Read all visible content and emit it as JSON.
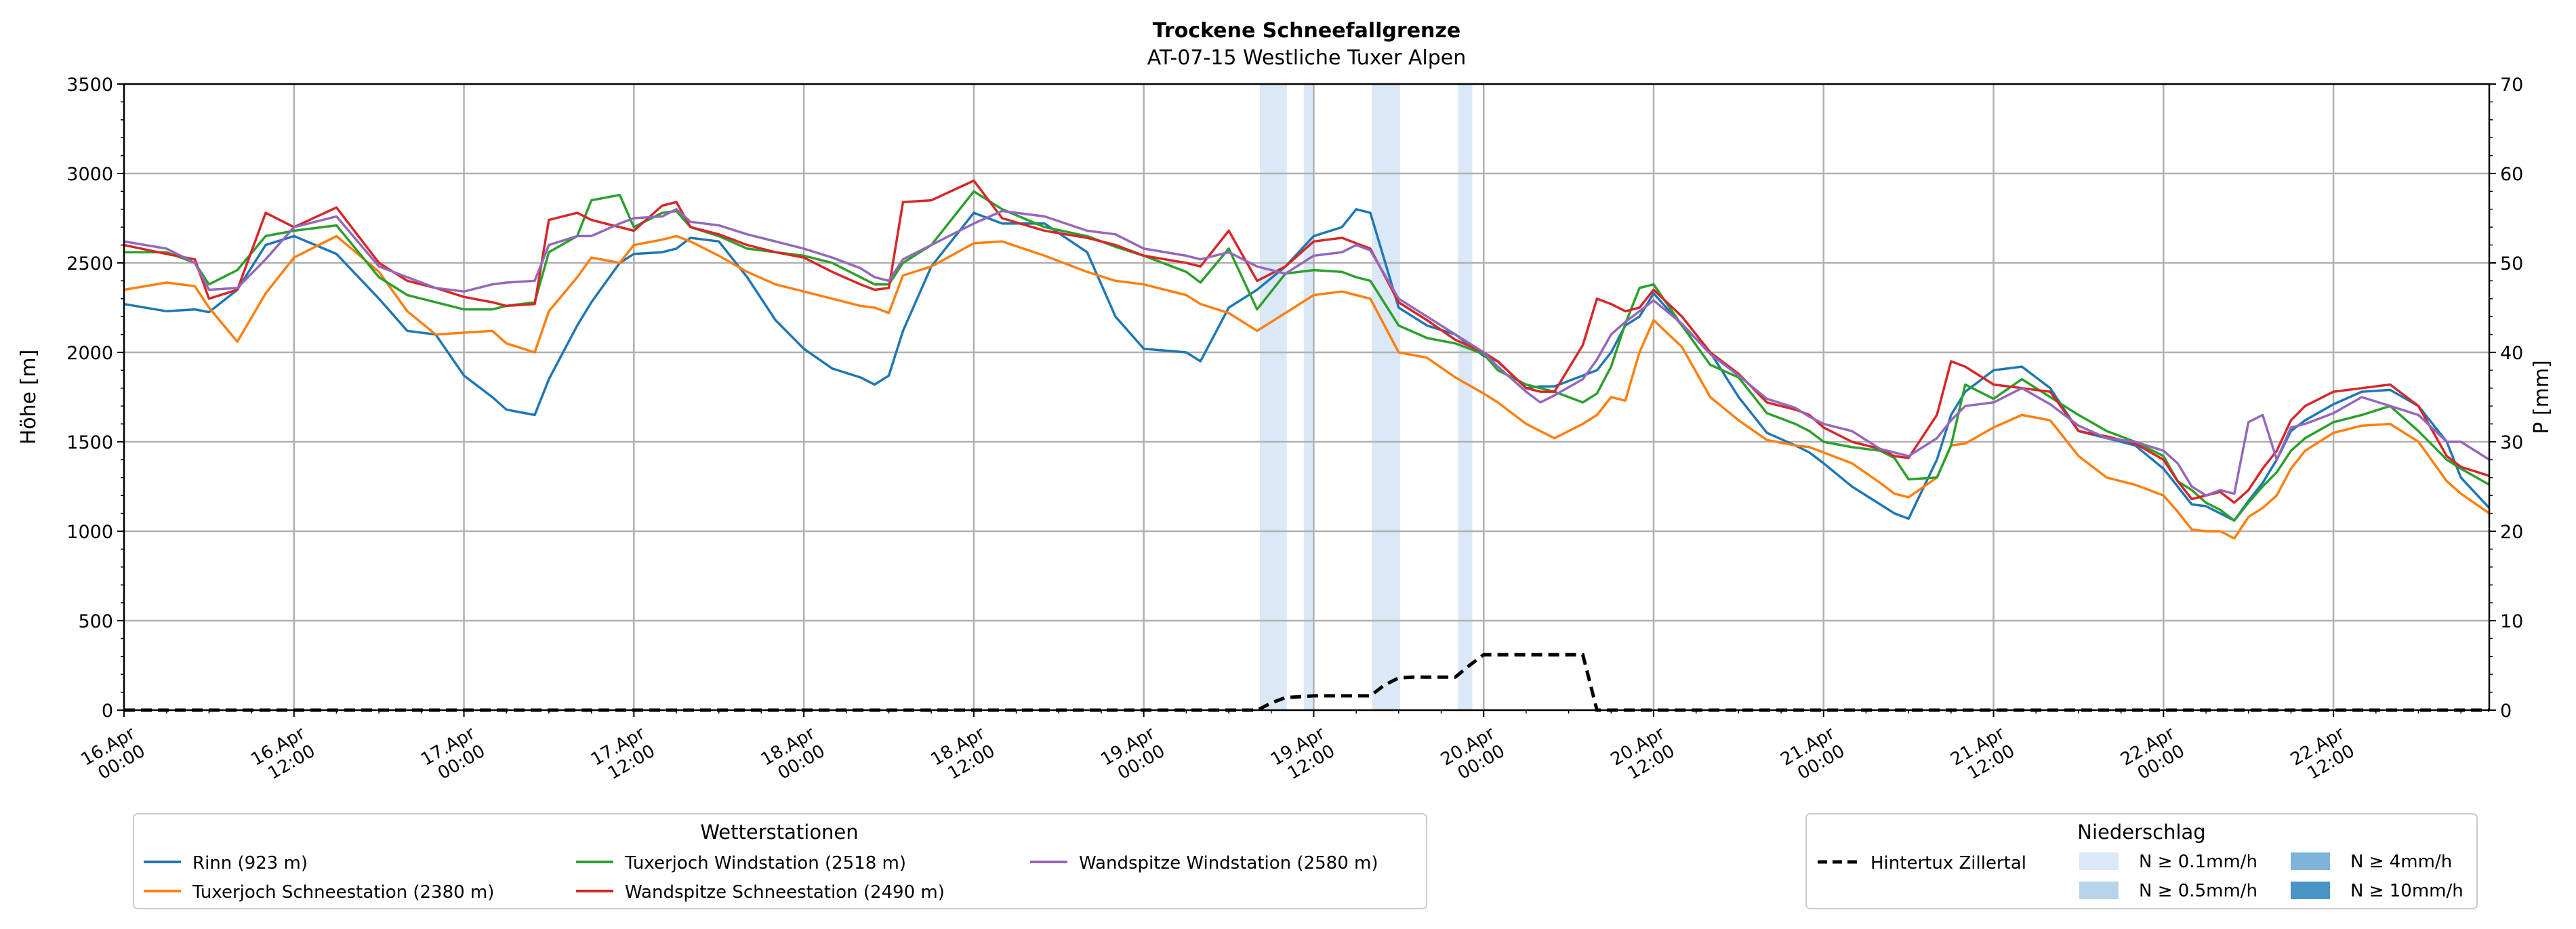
{
  "chart_data": {
    "type": "line",
    "title": "Trockene Schneefallgrenze",
    "subtitle": "AT-07-15 Westliche Tuxer Alpen",
    "ylabel": "Höhe [m]",
    "y2label": "P [mm]",
    "ylim": [
      0,
      3500
    ],
    "y2lim": [
      0,
      70
    ],
    "xlim_hours": [
      0,
      167
    ],
    "yticks": [
      "0",
      "500",
      "1000",
      "1500",
      "2000",
      "2500",
      "3000",
      "3500"
    ],
    "y2ticks": [
      "0",
      "10",
      "20",
      "30",
      "40",
      "50",
      "60",
      "70"
    ],
    "x_ticks": [
      {
        "h": 0,
        "l1": "16.Apr",
        "l2": "00:00"
      },
      {
        "h": 12,
        "l1": "16.Apr",
        "l2": "12:00"
      },
      {
        "h": 24,
        "l1": "17.Apr",
        "l2": "00:00"
      },
      {
        "h": 36,
        "l1": "17.Apr",
        "l2": "12:00"
      },
      {
        "h": 48,
        "l1": "18.Apr",
        "l2": "00:00"
      },
      {
        "h": 60,
        "l1": "18.Apr",
        "l2": "12:00"
      },
      {
        "h": 72,
        "l1": "19.Apr",
        "l2": "00:00"
      },
      {
        "h": 84,
        "l1": "19.Apr",
        "l2": "12:00"
      },
      {
        "h": 96,
        "l1": "20.Apr",
        "l2": "00:00"
      },
      {
        "h": 108,
        "l1": "20.Apr",
        "l2": "12:00"
      },
      {
        "h": 120,
        "l1": "21.Apr",
        "l2": "00:00"
      },
      {
        "h": 132,
        "l1": "21.Apr",
        "l2": "12:00"
      },
      {
        "h": 144,
        "l1": "22.Apr",
        "l2": "00:00"
      },
      {
        "h": 156,
        "l1": "22.Apr",
        "l2": "12:00"
      }
    ],
    "anchor_hours": [
      0,
      3,
      5,
      6,
      8,
      10,
      12,
      15,
      18,
      20,
      22,
      24,
      26,
      27,
      29,
      30,
      32,
      33,
      35,
      36,
      38,
      39,
      40,
      42,
      44,
      46,
      48,
      50,
      52,
      53,
      54,
      55,
      57,
      60,
      62,
      65,
      68,
      70,
      72,
      75,
      76,
      78,
      80,
      82,
      84,
      86,
      87,
      88,
      90,
      92,
      94,
      96,
      97,
      99,
      100,
      101,
      103,
      104,
      105,
      106,
      107,
      108,
      110,
      112,
      114,
      116,
      118,
      119,
      120,
      122,
      124,
      125,
      126,
      128,
      129,
      130,
      132,
      134,
      136,
      138,
      140,
      142,
      144,
      145,
      146,
      147,
      148,
      149,
      150,
      151,
      152,
      153,
      154,
      156,
      158,
      160,
      162,
      164,
      165,
      167
    ],
    "series": [
      {
        "name": "Rinn (923 m)",
        "color": "#1f77b4",
        "values": [
          2270,
          2230,
          2240,
          2225,
          2350,
          2600,
          2650,
          2550,
          2300,
          2120,
          2100,
          1870,
          1750,
          1680,
          1650,
          1850,
          2150,
          2280,
          2500,
          2550,
          2560,
          2580,
          2640,
          2620,
          2420,
          2180,
          2020,
          1910,
          1860,
          1820,
          1870,
          2120,
          2480,
          2780,
          2720,
          2720,
          2560,
          2200,
          2020,
          2000,
          1950,
          2250,
          2350,
          2480,
          2650,
          2700,
          2800,
          2780,
          2250,
          2150,
          2100,
          1980,
          1950,
          1800,
          1810,
          1810,
          1870,
          1900,
          2000,
          2150,
          2200,
          2330,
          2150,
          2000,
          1750,
          1550,
          1480,
          1440,
          1380,
          1250,
          1150,
          1100,
          1070,
          1400,
          1650,
          1780,
          1900,
          1920,
          1800,
          1560,
          1520,
          1480,
          1350,
          1250,
          1150,
          1140,
          1100,
          1060,
          1170,
          1270,
          1400,
          1560,
          1620,
          1710,
          1780,
          1790,
          1700,
          1500,
          1300,
          1130
        ]
      },
      {
        "name": "Tuxerjoch Schneestation (2380 m)",
        "color": "#ff7f0e",
        "values": [
          2350,
          2390,
          2370,
          2250,
          2060,
          2330,
          2530,
          2650,
          2450,
          2230,
          2100,
          2110,
          2120,
          2050,
          2000,
          2230,
          2420,
          2530,
          2500,
          2600,
          2630,
          2650,
          2620,
          2540,
          2450,
          2380,
          2340,
          2300,
          2260,
          2250,
          2220,
          2430,
          2480,
          2610,
          2620,
          2540,
          2450,
          2400,
          2380,
          2320,
          2270,
          2220,
          2120,
          2220,
          2320,
          2340,
          2320,
          2300,
          2000,
          1970,
          1860,
          1770,
          1720,
          1600,
          1560,
          1520,
          1600,
          1650,
          1750,
          1730,
          2000,
          2180,
          2030,
          1750,
          1620,
          1510,
          1480,
          1470,
          1440,
          1380,
          1270,
          1210,
          1190,
          1300,
          1480,
          1490,
          1580,
          1650,
          1620,
          1420,
          1300,
          1260,
          1200,
          1110,
          1010,
          1000,
          1000,
          960,
          1080,
          1130,
          1200,
          1350,
          1450,
          1550,
          1590,
          1600,
          1500,
          1280,
          1210,
          1100
        ]
      },
      {
        "name": "Tuxerjoch Windstation (2518 m)",
        "color": "#2ca02c",
        "values": [
          2560,
          2560,
          2500,
          2380,
          2460,
          2650,
          2680,
          2710,
          2420,
          2320,
          2280,
          2240,
          2240,
          2260,
          2280,
          2560,
          2650,
          2850,
          2880,
          2700,
          2780,
          2790,
          2700,
          2650,
          2580,
          2560,
          2540,
          2500,
          2420,
          2380,
          2380,
          2500,
          2600,
          2900,
          2800,
          2700,
          2650,
          2590,
          2540,
          2450,
          2390,
          2580,
          2240,
          2440,
          2460,
          2450,
          2420,
          2400,
          2150,
          2080,
          2050,
          1990,
          1900,
          1820,
          1800,
          1780,
          1720,
          1770,
          1920,
          2160,
          2360,
          2380,
          2150,
          1930,
          1860,
          1660,
          1600,
          1560,
          1500,
          1470,
          1450,
          1410,
          1290,
          1300,
          1480,
          1820,
          1740,
          1850,
          1750,
          1650,
          1560,
          1500,
          1420,
          1280,
          1230,
          1160,
          1120,
          1060,
          1160,
          1250,
          1330,
          1450,
          1520,
          1610,
          1650,
          1700,
          1560,
          1400,
          1350,
          1260
        ]
      },
      {
        "name": "Wandspitze Schneestation (2490 m)",
        "color": "#d62728",
        "values": [
          2600,
          2550,
          2520,
          2300,
          2350,
          2780,
          2700,
          2810,
          2500,
          2400,
          2360,
          2310,
          2280,
          2260,
          2270,
          2740,
          2780,
          2740,
          2700,
          2680,
          2820,
          2840,
          2700,
          2660,
          2600,
          2560,
          2530,
          2450,
          2380,
          2350,
          2360,
          2840,
          2850,
          2960,
          2750,
          2680,
          2640,
          2600,
          2540,
          2500,
          2480,
          2680,
          2400,
          2480,
          2620,
          2640,
          2610,
          2580,
          2280,
          2180,
          2070,
          2000,
          1950,
          1800,
          1780,
          1780,
          2040,
          2300,
          2270,
          2230,
          2250,
          2350,
          2200,
          2000,
          1880,
          1720,
          1680,
          1650,
          1580,
          1500,
          1460,
          1420,
          1410,
          1650,
          1950,
          1920,
          1820,
          1800,
          1780,
          1560,
          1530,
          1490,
          1400,
          1280,
          1180,
          1200,
          1220,
          1160,
          1230,
          1350,
          1450,
          1620,
          1700,
          1780,
          1800,
          1820,
          1700,
          1420,
          1360,
          1310
        ]
      },
      {
        "name": "Wandspitze Windstation (2580 m)",
        "color": "#9467bd",
        "values": [
          2620,
          2580,
          2500,
          2350,
          2360,
          2520,
          2700,
          2760,
          2480,
          2420,
          2360,
          2340,
          2380,
          2390,
          2400,
          2600,
          2650,
          2650,
          2720,
          2750,
          2760,
          2800,
          2730,
          2710,
          2660,
          2620,
          2580,
          2530,
          2470,
          2420,
          2400,
          2520,
          2600,
          2720,
          2790,
          2760,
          2680,
          2660,
          2580,
          2540,
          2520,
          2560,
          2480,
          2440,
          2540,
          2560,
          2600,
          2570,
          2300,
          2200,
          2100,
          2000,
          1920,
          1780,
          1720,
          1760,
          1850,
          1960,
          2100,
          2170,
          2230,
          2290,
          2160,
          1990,
          1870,
          1740,
          1690,
          1640,
          1600,
          1560,
          1460,
          1440,
          1420,
          1520,
          1620,
          1700,
          1720,
          1800,
          1710,
          1590,
          1520,
          1500,
          1450,
          1380,
          1250,
          1200,
          1230,
          1210,
          1610,
          1650,
          1400,
          1580,
          1600,
          1660,
          1750,
          1700,
          1650,
          1500,
          1500,
          1400
        ]
      }
    ],
    "precip_series": {
      "name": "Hintertux Zillertal",
      "hours": [
        0,
        80,
        81,
        82,
        83,
        84,
        85,
        86,
        87,
        88,
        89,
        90,
        91,
        92,
        93,
        94,
        95,
        96,
        97,
        98,
        99,
        100,
        101,
        102,
        103,
        104,
        167
      ],
      "values_mm": [
        0,
        0,
        0.8,
        1.4,
        1.5,
        1.6,
        1.6,
        1.6,
        1.6,
        1.6,
        2.8,
        3.6,
        3.7,
        3.7,
        3.7,
        3.7,
        5.0,
        6.2,
        6.2,
        6.2,
        6.2,
        6.2,
        6.2,
        6.2,
        6.2,
        0,
        0
      ]
    },
    "precip_spans": [
      {
        "start": 80.2,
        "end": 82.1,
        "level": "N ≥ 0.1mm/h"
      },
      {
        "start": 83.3,
        "end": 84.0,
        "level": "N ≥ 0.1mm/h"
      },
      {
        "start": 88.1,
        "end": 90.1,
        "level": "N ≥ 0.1mm/h"
      },
      {
        "start": 94.2,
        "end": 95.2,
        "level": "N ≥ 0.1mm/h"
      }
    ],
    "legend_stations_title": "Wetterstationen",
    "legend_precip_title": "Niederschlag",
    "legend_precip_items": [
      {
        "label": "N ≥ 0.1mm/h",
        "color": "#dbe8f5"
      },
      {
        "label": "N ≥ 0.5mm/h",
        "color": "#b7d3ea"
      },
      {
        "label": "N ≥ 4mm/h",
        "color": "#7fb3da"
      },
      {
        "label": "N ≥ 10mm/h",
        "color": "#4a94c6"
      }
    ]
  }
}
